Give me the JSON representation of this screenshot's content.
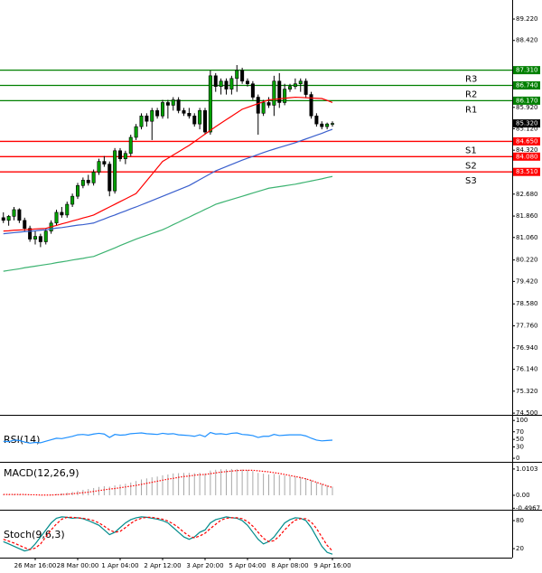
{
  "chart_data": [
    {
      "type": "candlestick",
      "categories": [
        null,
        null,
        null,
        null,
        null,
        null,
        "26 Mar 16:00",
        null,
        null,
        null,
        null,
        null,
        null,
        null,
        "28 Mar 00:00",
        null,
        null,
        null,
        null,
        null,
        null,
        null,
        "1 Apr 04:00",
        null,
        null,
        null,
        null,
        null,
        null,
        null,
        "2 Apr 12:00",
        null,
        null,
        null,
        null,
        null,
        null,
        null,
        "3 Apr 20:00",
        null,
        null,
        null,
        null,
        null,
        null,
        null,
        "5 Apr 04:00",
        null,
        null,
        null,
        null,
        null,
        null,
        null,
        "8 Apr 08:00",
        null,
        null,
        null,
        null,
        null,
        null,
        null,
        "9 Apr 16:00"
      ],
      "open": [
        81.8,
        81.7,
        81.85,
        82.1,
        81.7,
        81.4,
        81.0,
        81.1,
        80.9,
        81.3,
        81.6,
        82.0,
        81.9,
        82.3,
        82.6,
        83.0,
        83.2,
        83.1,
        83.5,
        83.9,
        83.8,
        82.8,
        84.3,
        84.0,
        84.2,
        84.8,
        85.2,
        85.6,
        85.4,
        85.8,
        85.6,
        86.1,
        86.0,
        86.2,
        85.8,
        85.7,
        85.6,
        85.3,
        85.8,
        85.0,
        87.1,
        86.7,
        86.9,
        86.6,
        87.0,
        87.3,
        86.9,
        86.8,
        86.3,
        85.7,
        86.1,
        86.0,
        86.9,
        86.1,
        86.6,
        86.7,
        86.8,
        86.9,
        86.4,
        85.6,
        85.3,
        85.2,
        85.3
      ],
      "high": [
        82.0,
        81.9,
        82.2,
        82.15,
        81.8,
        81.5,
        81.3,
        81.2,
        81.4,
        81.7,
        82.1,
        82.2,
        82.4,
        82.7,
        83.1,
        83.3,
        83.4,
        83.6,
        84.0,
        84.1,
        83.9,
        84.4,
        84.4,
        84.3,
        84.9,
        85.3,
        85.7,
        85.7,
        85.9,
        85.9,
        86.2,
        86.2,
        86.3,
        86.3,
        85.9,
        85.9,
        85.7,
        85.9,
        85.9,
        87.3,
        87.2,
        87.0,
        87.0,
        87.1,
        87.5,
        87.4,
        87.0,
        86.9,
        86.4,
        86.2,
        86.3,
        87.1,
        87.2,
        86.8,
        86.8,
        87.0,
        87.0,
        87.0,
        86.5,
        85.7,
        85.4,
        85.35,
        85.4
      ],
      "low": [
        81.6,
        81.5,
        81.7,
        81.6,
        81.3,
        80.9,
        80.8,
        80.7,
        80.8,
        81.2,
        81.5,
        81.8,
        81.8,
        82.2,
        82.5,
        82.9,
        83.0,
        83.0,
        83.4,
        83.7,
        82.6,
        82.7,
        83.9,
        83.8,
        84.1,
        84.7,
        85.1,
        85.2,
        84.7,
        85.5,
        85.5,
        85.5,
        85.8,
        85.7,
        85.6,
        85.5,
        85.2,
        85.1,
        84.9,
        84.9,
        86.5,
        86.4,
        86.4,
        86.4,
        86.5,
        86.8,
        86.7,
        86.2,
        84.9,
        85.6,
        85.9,
        85.6,
        85.9,
        86.0,
        86.5,
        86.6,
        86.5,
        86.3,
        85.5,
        85.2,
        85.1,
        85.1,
        85.2
      ],
      "close": [
        81.7,
        81.85,
        82.1,
        81.7,
        81.4,
        81.0,
        81.1,
        80.9,
        81.3,
        81.6,
        82.0,
        81.9,
        82.3,
        82.6,
        83.0,
        83.2,
        83.1,
        83.5,
        83.9,
        83.8,
        82.8,
        84.3,
        84.0,
        84.2,
        84.8,
        85.2,
        85.6,
        85.4,
        85.8,
        85.6,
        86.1,
        86.0,
        86.2,
        85.8,
        85.7,
        85.6,
        85.3,
        85.8,
        85.0,
        87.1,
        86.7,
        86.9,
        86.6,
        87.0,
        87.3,
        86.9,
        86.8,
        86.3,
        85.7,
        86.1,
        86.0,
        86.9,
        86.1,
        86.6,
        86.7,
        86.8,
        86.9,
        86.4,
        85.6,
        85.3,
        85.2,
        85.3,
        85.32
      ],
      "up_color": "#00a000",
      "down_color": "#000000",
      "wick_color": "#000000",
      "series": [
        {
          "color": "#ff0000",
          "values": [
            81.3,
            81.31,
            81.33,
            81.34,
            81.35,
            81.36,
            81.38,
            81.39,
            81.4,
            81.46,
            81.51,
            81.57,
            81.62,
            81.68,
            81.73,
            81.79,
            81.84,
            81.9,
            82.0,
            82.1,
            82.2,
            82.3,
            82.4,
            82.5,
            82.6,
            82.7,
            82.94,
            83.18,
            83.42,
            83.66,
            83.9,
            84.02,
            84.14,
            84.26,
            84.38,
            84.5,
            84.64,
            84.78,
            84.92,
            85.06,
            85.2,
            85.33,
            85.46,
            85.59,
            85.72,
            85.85,
            85.92,
            85.99,
            86.06,
            86.13,
            86.2,
            86.22,
            86.24,
            86.26,
            86.28,
            86.3,
            86.29,
            86.28,
            86.27,
            86.26,
            86.25,
            86.18,
            86.1
          ]
        },
        {
          "color": "#3a5fcd",
          "values": [
            81.2,
            81.22,
            81.24,
            81.26,
            81.28,
            81.29,
            81.31,
            81.33,
            81.35,
            81.38,
            81.41,
            81.43,
            81.46,
            81.49,
            81.52,
            81.54,
            81.57,
            81.6,
            81.68,
            81.75,
            81.83,
            81.9,
            81.98,
            82.05,
            82.13,
            82.2,
            82.28,
            82.36,
            82.44,
            82.52,
            82.6,
            82.68,
            82.76,
            82.84,
            82.92,
            83.0,
            83.11,
            83.22,
            83.33,
            83.44,
            83.55,
            83.63,
            83.71,
            83.79,
            83.87,
            83.95,
            84.02,
            84.09,
            84.16,
            84.23,
            84.3,
            84.36,
            84.42,
            84.48,
            84.54,
            84.6,
            84.67,
            84.74,
            84.81,
            84.88,
            84.95,
            85.03,
            85.1
          ]
        },
        {
          "color": "#3cb371",
          "values": [
            79.8,
            79.83,
            79.86,
            79.89,
            79.93,
            79.96,
            79.99,
            80.02,
            80.05,
            80.08,
            80.12,
            80.15,
            80.18,
            80.22,
            80.25,
            80.28,
            80.32,
            80.35,
            80.43,
            80.51,
            80.59,
            80.67,
            80.76,
            80.84,
            80.92,
            81.0,
            81.07,
            81.14,
            81.21,
            81.28,
            81.35,
            81.44,
            81.54,
            81.63,
            81.73,
            81.82,
            81.92,
            82.01,
            82.11,
            82.2,
            82.3,
            82.36,
            82.42,
            82.48,
            82.54,
            82.6,
            82.66,
            82.72,
            82.78,
            82.84,
            82.9,
            82.93,
            82.96,
            82.99,
            83.02,
            83.05,
            83.09,
            83.13,
            83.17,
            83.21,
            83.25,
            83.3,
            83.34
          ]
        }
      ],
      "levels": [
        {
          "name": "R3",
          "value": 87.31,
          "label": "87.310",
          "color": "#008000"
        },
        {
          "name": "R2",
          "value": 86.74,
          "label": "86.740",
          "color": "#008000"
        },
        {
          "name": "R1",
          "value": 86.17,
          "label": "86.170",
          "color": "#008000"
        },
        {
          "name": "S1",
          "value": 84.65,
          "label": "84.650",
          "color": "#ff0000"
        },
        {
          "name": "S2",
          "value": 84.08,
          "label": "84.080",
          "color": "#ff0000"
        },
        {
          "name": "S3",
          "value": 83.51,
          "label": "83.510",
          "color": "#ff0000"
        }
      ],
      "last": {
        "value": 85.32,
        "label": "85.320",
        "color": "#000000"
      },
      "ylim": [
        74.47,
        89.93
      ],
      "yticks": [
        {
          "value": 89.22,
          "label": "89.220"
        },
        {
          "value": 88.42,
          "label": "88.420"
        },
        {
          "value": 85.92,
          "label": "85.920"
        },
        {
          "value": 85.12,
          "label": "85.120"
        },
        {
          "value": 84.32,
          "label": "84.320"
        },
        {
          "value": 82.68,
          "label": "82.680"
        },
        {
          "value": 81.86,
          "label": "81.860"
        },
        {
          "value": 81.06,
          "label": "81.060"
        },
        {
          "value": 80.22,
          "label": "80.220"
        },
        {
          "value": 79.42,
          "label": "79.420"
        },
        {
          "value": 78.58,
          "label": "78.580"
        },
        {
          "value": 77.76,
          "label": "77.760"
        },
        {
          "value": 76.94,
          "label": "76.940"
        },
        {
          "value": 76.14,
          "label": "76.140"
        },
        {
          "value": 75.32,
          "label": "75.320"
        },
        {
          "value": 74.5,
          "label": "74.500"
        }
      ]
    },
    {
      "type": "line",
      "title": "RSI(14)",
      "ylim": [
        -7,
        110
      ],
      "yticks": [
        100,
        70,
        50,
        30,
        0
      ],
      "series": [
        {
          "color": "#1e90ff",
          "values": [
            45,
            44,
            48,
            47,
            43,
            40,
            42,
            41,
            45,
            49,
            53,
            52,
            55,
            58,
            62,
            63,
            61,
            64,
            66,
            64,
            55,
            63,
            61,
            62,
            65,
            66,
            67,
            65,
            64,
            63,
            66,
            64,
            65,
            62,
            61,
            60,
            58,
            62,
            57,
            68,
            64,
            65,
            63,
            66,
            67,
            63,
            62,
            60,
            55,
            58,
            58,
            63,
            60,
            61,
            62,
            62,
            62,
            59,
            53,
            48,
            46,
            47,
            48
          ]
        }
      ]
    },
    {
      "type": "bar",
      "title": "MACD(12,26,9)",
      "ylim": [
        -0.52,
        1.25
      ],
      "yticks": [
        1.0103,
        {
          "value": 0,
          "label": "0.00"
        },
        -0.4967
      ],
      "color": "#a8a8a8",
      "values": [
        0.02,
        0.02,
        0.03,
        0.03,
        0.02,
        0.01,
        0.0,
        -0.01,
        0.0,
        0.02,
        0.05,
        0.07,
        0.1,
        0.13,
        0.17,
        0.21,
        0.24,
        0.28,
        0.32,
        0.35,
        0.33,
        0.38,
        0.41,
        0.44,
        0.49,
        0.55,
        0.61,
        0.65,
        0.69,
        0.72,
        0.77,
        0.8,
        0.84,
        0.85,
        0.86,
        0.86,
        0.85,
        0.86,
        0.84,
        0.95,
        0.98,
        1.0,
        1.0,
        1.01,
        1.01,
        0.99,
        0.97,
        0.93,
        0.86,
        0.83,
        0.8,
        0.82,
        0.78,
        0.76,
        0.74,
        0.72,
        0.7,
        0.66,
        0.58,
        0.5,
        0.43,
        0.38,
        0.33
      ],
      "series": [
        {
          "color": "#ff0000",
          "style": "dotted",
          "values": [
            0.03,
            0.03,
            0.03,
            0.03,
            0.03,
            0.02,
            0.02,
            0.01,
            0.01,
            0.01,
            0.02,
            0.03,
            0.04,
            0.06,
            0.08,
            0.1,
            0.12,
            0.15,
            0.18,
            0.21,
            0.24,
            0.26,
            0.29,
            0.32,
            0.35,
            0.38,
            0.42,
            0.46,
            0.5,
            0.54,
            0.58,
            0.62,
            0.65,
            0.69,
            0.72,
            0.74,
            0.77,
            0.79,
            0.8,
            0.83,
            0.86,
            0.89,
            0.91,
            0.93,
            0.95,
            0.96,
            0.96,
            0.96,
            0.94,
            0.92,
            0.9,
            0.87,
            0.84,
            0.8,
            0.76,
            0.72,
            0.68,
            0.63,
            0.57,
            0.5,
            0.43,
            0.36,
            0.3
          ]
        }
      ]
    },
    {
      "type": "line",
      "title": "Stoch(9,6,3)",
      "ylim": [
        0.7,
        101.3
      ],
      "yticks": [
        80,
        20
      ],
      "series": [
        {
          "color": "#008b8b",
          "values": [
            35,
            30,
            25,
            20,
            15,
            18,
            30,
            45,
            60,
            75,
            85,
            88,
            87,
            85,
            86,
            84,
            80,
            75,
            70,
            60,
            50,
            55,
            65,
            75,
            82,
            86,
            88,
            87,
            85,
            83,
            80,
            75,
            65,
            55,
            45,
            40,
            45,
            55,
            60,
            75,
            82,
            85,
            88,
            86,
            85,
            80,
            70,
            55,
            40,
            30,
            35,
            45,
            60,
            75,
            82,
            86,
            85,
            80,
            65,
            45,
            25,
            12,
            8
          ]
        },
        {
          "color": "#ff0000",
          "style": "dashed",
          "values": [
            40,
            36,
            32,
            27,
            22,
            18,
            21,
            30,
            45,
            60,
            73,
            83,
            87,
            87,
            86,
            85,
            83,
            80,
            75,
            68,
            60,
            55,
            57,
            65,
            74,
            81,
            85,
            87,
            87,
            85,
            83,
            79,
            73,
            65,
            55,
            47,
            43,
            47,
            53,
            63,
            72,
            81,
            85,
            86,
            86,
            84,
            78,
            68,
            55,
            42,
            35,
            37,
            47,
            60,
            72,
            81,
            84,
            84,
            77,
            63,
            45,
            27,
            15
          ]
        }
      ]
    }
  ]
}
